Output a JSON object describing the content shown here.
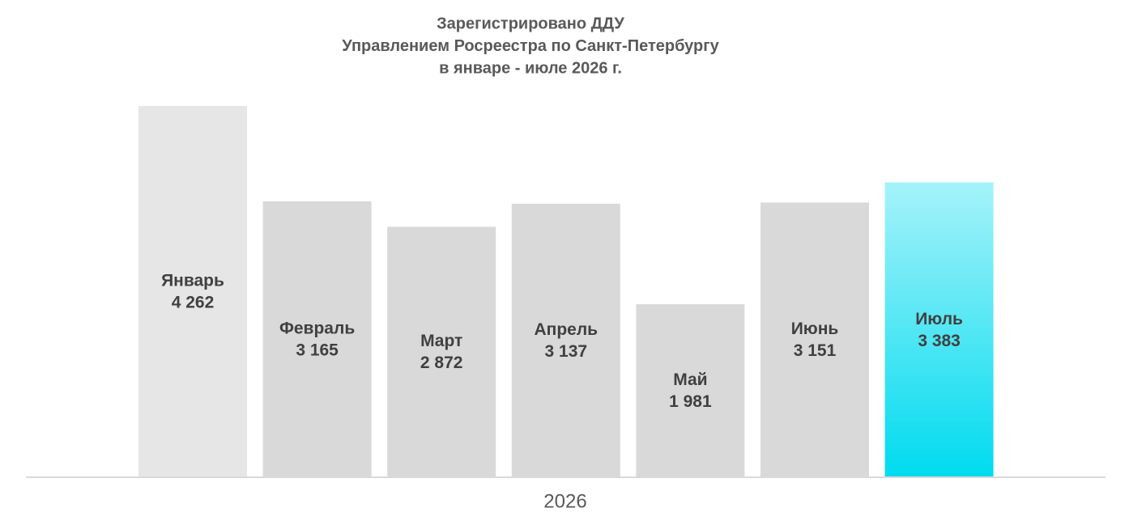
{
  "chart_data": {
    "type": "bar",
    "title": [
      "Зарегистрировано ДДУ",
      "Управлением Росреестра по Санкт-Петербургу",
      "в январе - июле 2026 г."
    ],
    "x_label": "2026",
    "categories": [
      "Январь",
      "Февраль",
      "Март",
      "Апрель",
      "Май",
      "Июнь",
      "Июль"
    ],
    "values": [
      4262,
      3165,
      2872,
      3137,
      1981,
      3151,
      3383
    ],
    "value_labels": [
      "4 262",
      "3 165",
      "2 872",
      "3 137",
      "1 981",
      "3 151",
      "3 383"
    ],
    "colors": [
      "#e6e6e6",
      "#d9d9d9",
      "#d9d9d9",
      "#d9d9d9",
      "#d9d9d9",
      "#d9d9d9",
      "#00dbef"
    ],
    "gradient": [
      false,
      false,
      false,
      false,
      false,
      false,
      true
    ],
    "ylim": [
      0,
      4500
    ]
  }
}
